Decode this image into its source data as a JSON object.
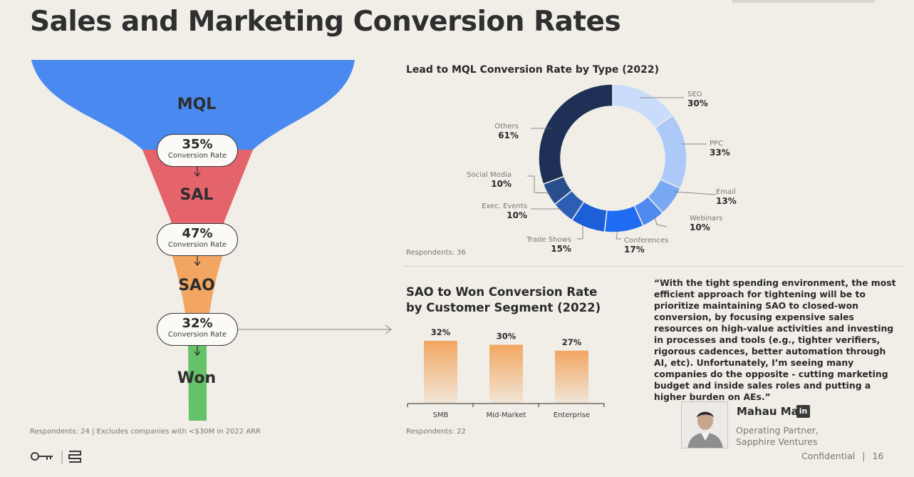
{
  "title": "Sales and Marketing Conversion Rates",
  "funnel": {
    "stages": [
      "MQL",
      "SAL",
      "SAO",
      "Won"
    ],
    "conversions": [
      {
        "value": "35%",
        "caption": "Conversion Rate"
      },
      {
        "value": "47%",
        "caption": "Conversion Rate"
      },
      {
        "value": "32%",
        "caption": "Conversion Rate"
      }
    ],
    "colors": {
      "mql": "#4a8af0",
      "sal": "#e5636a",
      "sao": "#f2a661",
      "won": "#66c26a"
    },
    "footnote": "Respondents: 24 | Excludes companies with <$30M in 2022 ARR"
  },
  "chart_data": [
    {
      "type": "pie",
      "title": "Lead to MQL Conversion Rate by Type (2022)",
      "categories": [
        "SEO",
        "PPC",
        "Email",
        "Webinars",
        "Conferences",
        "Trade Shows",
        "Exec. Events",
        "Social Media",
        "Others"
      ],
      "values": [
        30,
        33,
        13,
        10,
        17,
        15,
        10,
        10,
        61
      ],
      "labels": [
        "30%",
        "33%",
        "13%",
        "10%",
        "17%",
        "15%",
        "10%",
        "10%",
        "61%"
      ],
      "colors": [
        "#c9dcfb",
        "#acc9f8",
        "#79a8f3",
        "#4f8af0",
        "#1f6cf2",
        "#1c5fd8",
        "#2c5fb3",
        "#294e8e",
        "#1e3056"
      ],
      "footnote": "Respondents: 36"
    },
    {
      "type": "bar",
      "title": "SAO to Won Conversion Rate by Customer Segment (2022)",
      "title_lines": [
        "SAO to Won Conversion Rate",
        "by Customer Segment (2022)"
      ],
      "categories": [
        "SMB",
        "Mid-Market",
        "Enterprise"
      ],
      "values": [
        32,
        30,
        27
      ],
      "labels": [
        "32%",
        "30%",
        "27%"
      ],
      "ylim": [
        0,
        32
      ],
      "color": "#f2a661",
      "footnote": "Respondents: 22"
    }
  ],
  "quote": {
    "text": "“With the tight spending environment, the most efficient approach for tightening will be to prioritize maintaining SAO to closed-won conversion, by focusing expensive sales resources on high-value activities and investing in processes and tools (e.g., tighter verifiers, rigorous cadences, better automation through AI, etc). Unfortunately, I’m seeing many companies do the opposite - cutting marketing budget and inside sales roles and putting a higher burden on AEs.”",
    "author": "Mahau Ma",
    "linkedin": "in",
    "role_line1": "Operating Partner,",
    "role_line2": "Sapphire Ventures"
  },
  "footer": {
    "confidential": "Confidential",
    "page": "16"
  }
}
